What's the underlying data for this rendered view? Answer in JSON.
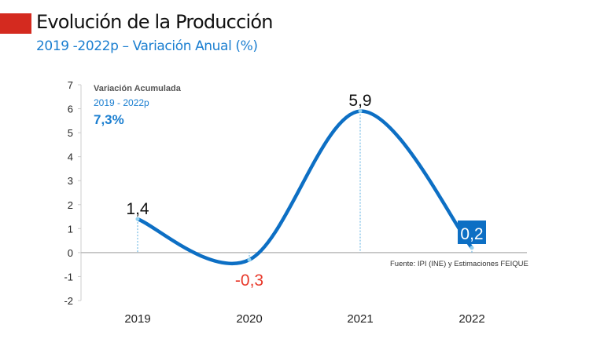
{
  "header": {
    "title": "Evolución de la Producción",
    "subtitle": "2019 -2022p  – Variación Anual (%)"
  },
  "annotation": {
    "label": "Variación Acumulada",
    "period": "2019 - 2022p",
    "value": "7,3%"
  },
  "source": "Fuente: IPI (INE) y Estimaciones FEIQUE",
  "colors": {
    "line": "#0d6fc4",
    "negative_label": "#e8392b",
    "accent": "#d42a1f",
    "highlight_box": "#0d6fc4"
  },
  "chart_data": {
    "type": "line",
    "title": "Evolución de la Producción",
    "subtitle": "2019 -2022p – Variación Anual (%)",
    "categories": [
      "2019",
      "2020",
      "2021",
      "2022"
    ],
    "values": [
      1.4,
      -0.3,
      5.9,
      0.2
    ],
    "data_labels": [
      "1,4",
      "-0,3",
      "5,9",
      "0,2"
    ],
    "ylim": [
      -2,
      7
    ],
    "yticks": [
      "-2",
      "-1",
      "0",
      "1",
      "2",
      "3",
      "4",
      "5",
      "6",
      "7"
    ],
    "xlabel": "",
    "ylabel": "",
    "grid": false,
    "smooth": true
  }
}
